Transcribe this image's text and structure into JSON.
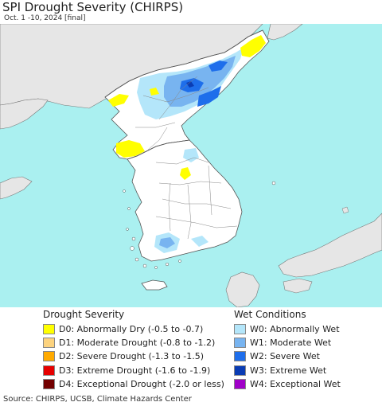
{
  "header": {
    "title": "SPI Drought Severity (CHIRPS)",
    "subtitle": "Oct. 1 -10, 2024 [final]"
  },
  "legend": {
    "drought": {
      "title": "Drought Severity",
      "items": [
        {
          "label": "D0: Abnormally Dry (-0.5 to -0.7)",
          "color": "#ffff00"
        },
        {
          "label": "D1: Moderate Drought (-0.8 to -1.2)",
          "color": "#fcd37f"
        },
        {
          "label": "D2: Severe Drought (-1.3 to -1.5)",
          "color": "#ffaa00"
        },
        {
          "label": "D3: Extreme Drought (-1.6 to -1.9)",
          "color": "#e60000"
        },
        {
          "label": "D4: Exceptional Drought (-2.0 or less)",
          "color": "#730000"
        }
      ]
    },
    "wet": {
      "title": "Wet Conditions",
      "items": [
        {
          "label": "W0: Abnormally Wet",
          "color": "#b4e6fa"
        },
        {
          "label": "W1: Moderate Wet",
          "color": "#78b4f0"
        },
        {
          "label": "W2: Severe Wet",
          "color": "#1e6eeb"
        },
        {
          "label": "W3: Extreme Wet",
          "color": "#0a3cb4"
        },
        {
          "label": "W4: Exceptional Wet",
          "color": "#a000c8"
        }
      ]
    }
  },
  "colors": {
    "sea": "#aaf0f0",
    "land": "#ffffff",
    "outside_land": "#e6e6e6",
    "border": "#555555"
  },
  "footer": {
    "source": "Source: CHIRPS, UCSB, Climate Hazards Center"
  }
}
